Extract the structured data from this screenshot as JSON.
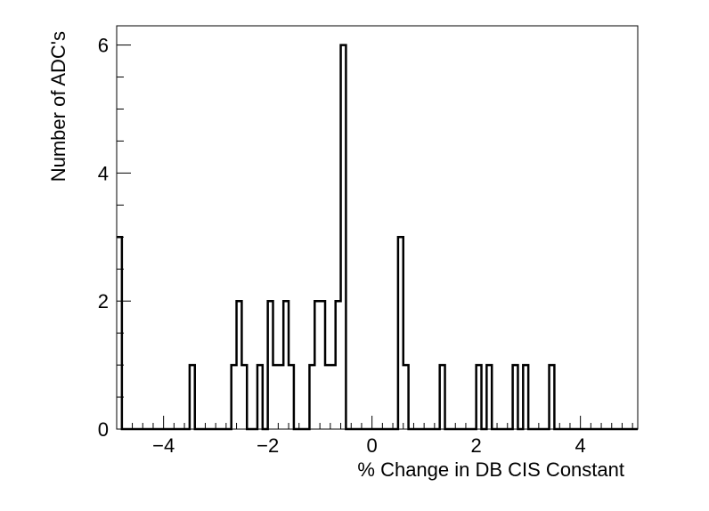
{
  "chart_data": {
    "type": "histogram",
    "title": "",
    "xlabel": "% Change in DB CIS Constant",
    "ylabel": "Number of ADC's",
    "xlim": [
      -4.9,
      5.1
    ],
    "ylim": [
      0,
      6.3
    ],
    "bin_width": 0.1,
    "x_ticks": [
      -4,
      -2,
      0,
      2,
      4
    ],
    "x_tick_labels": [
      "−4",
      "−2",
      "0",
      "2",
      "4"
    ],
    "y_ticks": [
      0,
      2,
      4,
      6
    ],
    "y_tick_labels": [
      "0",
      "2",
      "4",
      "6"
    ],
    "grid": false,
    "bins": [
      {
        "low": -4.9,
        "count": 3
      },
      {
        "low": -3.5,
        "count": 1
      },
      {
        "low": -2.7,
        "count": 1
      },
      {
        "low": -2.6,
        "count": 2
      },
      {
        "low": -2.5,
        "count": 1
      },
      {
        "low": -2.2,
        "count": 1
      },
      {
        "low": -2.0,
        "count": 2
      },
      {
        "low": -1.9,
        "count": 1
      },
      {
        "low": -1.8,
        "count": 1
      },
      {
        "low": -1.7,
        "count": 2
      },
      {
        "low": -1.6,
        "count": 1
      },
      {
        "low": -1.2,
        "count": 1
      },
      {
        "low": -1.1,
        "count": 2
      },
      {
        "low": -1.0,
        "count": 2
      },
      {
        "low": -0.9,
        "count": 1
      },
      {
        "low": -0.8,
        "count": 1
      },
      {
        "low": -0.7,
        "count": 2
      },
      {
        "low": -0.6,
        "count": 6
      },
      {
        "low": 0.5,
        "count": 3
      },
      {
        "low": 0.6,
        "count": 1
      },
      {
        "low": 1.3,
        "count": 1
      },
      {
        "low": 2.0,
        "count": 1
      },
      {
        "low": 2.2,
        "count": 1
      },
      {
        "low": 2.7,
        "count": 1
      },
      {
        "low": 2.9,
        "count": 1
      },
      {
        "low": 3.4,
        "count": 1
      }
    ]
  }
}
